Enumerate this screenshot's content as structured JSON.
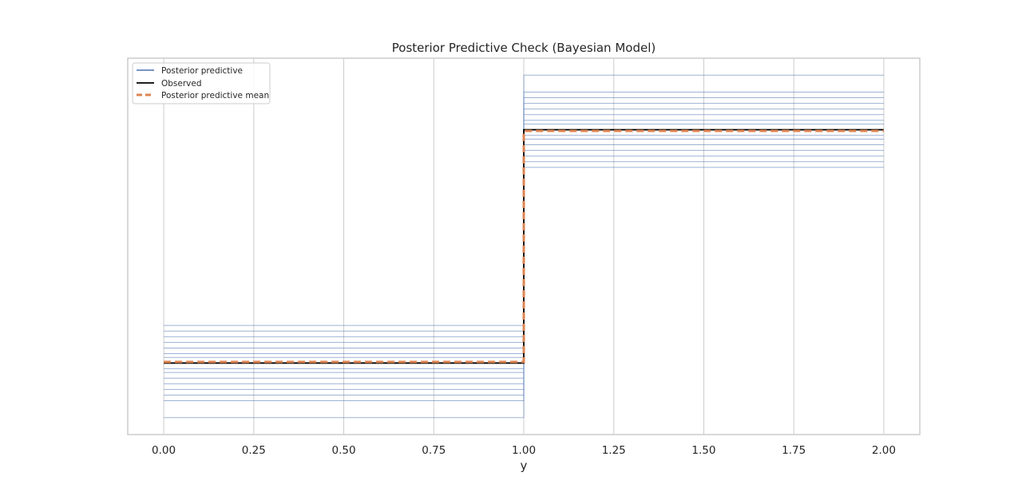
{
  "chart_data": {
    "type": "line",
    "title": "Posterior Predictive Check (Bayesian Model)",
    "xlabel": "y",
    "ylabel": "",
    "xlim": [
      -0.1,
      2.1
    ],
    "ylim": [
      0,
      1
    ],
    "grid": true,
    "y_ticks_shown": false,
    "legend_position": "top-left",
    "x_ticks": [
      "0.00",
      "0.25",
      "0.50",
      "0.75",
      "1.00",
      "1.25",
      "1.50",
      "1.75",
      "2.00"
    ],
    "x_tick_values": [
      0,
      0.25,
      0.5,
      0.75,
      1.0,
      1.25,
      1.5,
      1.75,
      2.0
    ],
    "step_x": [
      0,
      1,
      2
    ],
    "series": [
      {
        "name": "Posterior predictive",
        "color": "#4c72b0",
        "style": "thin-steps",
        "levels_low": [
          0.045,
          0.09,
          0.105,
          0.12,
          0.135,
          0.15,
          0.165,
          0.175,
          0.19,
          0.205,
          0.215,
          0.23,
          0.245,
          0.26,
          0.275,
          0.29
        ],
        "levels_high": [
          0.955,
          0.91,
          0.895,
          0.88,
          0.865,
          0.85,
          0.835,
          0.825,
          0.81,
          0.795,
          0.785,
          0.77,
          0.755,
          0.74,
          0.725,
          0.71
        ]
      },
      {
        "name": "Observed",
        "color": "#000000",
        "style": "solid",
        "levels": [
          0.19,
          0.81
        ]
      },
      {
        "name": "Posterior predictive mean",
        "color": "#dd8452",
        "style": "dashed",
        "levels": [
          0.193,
          0.807
        ]
      }
    ]
  }
}
